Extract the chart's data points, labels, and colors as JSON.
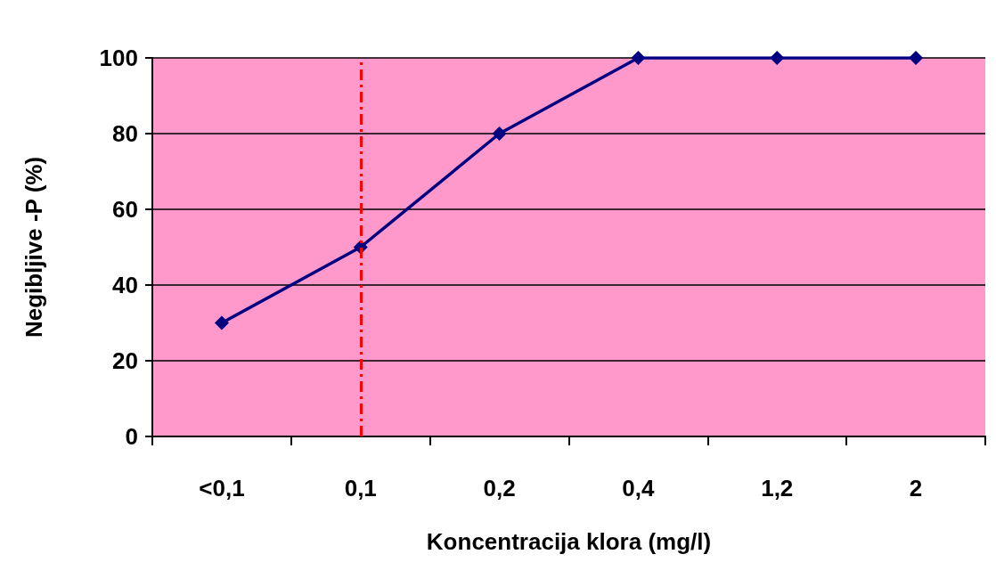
{
  "chart_data": {
    "type": "line",
    "xlabel": "Koncentracija klora (mg/l)",
    "ylabel": "Negibljive -P (%)",
    "categories": [
      "<0,1",
      "0,1",
      "0,2",
      "0,4",
      "1,2",
      "2"
    ],
    "series": [
      {
        "color": "#000080",
        "values": [
          30,
          50,
          80,
          100,
          100,
          100
        ]
      }
    ],
    "ylim": [
      0,
      100
    ],
    "yticks": [
      0,
      20,
      40,
      60,
      80,
      100
    ],
    "grid": "y",
    "marker": "diamond",
    "line_style": "solid",
    "ref_lines": [
      {
        "axis": "x",
        "value": "0,1",
        "color": "#ff0000",
        "line_style": "dashdot"
      }
    ]
  }
}
